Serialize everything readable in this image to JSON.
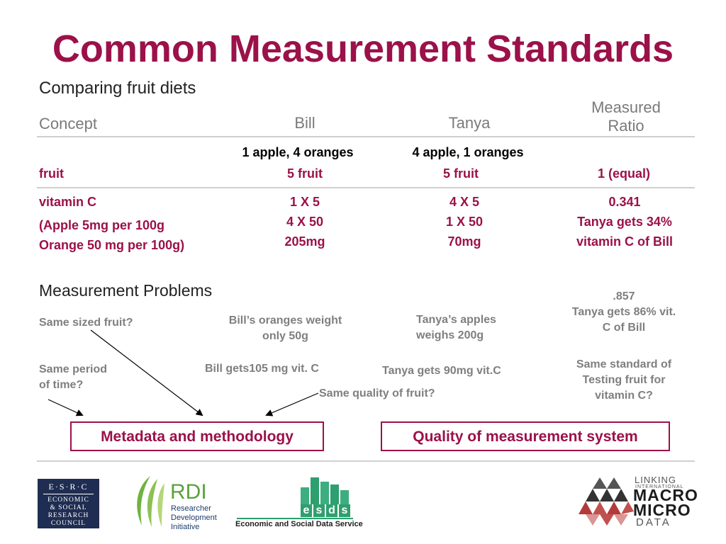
{
  "title": "Common Measurement Standards",
  "subtitle": "Comparing fruit diets",
  "table": {
    "headers": {
      "concept": "Concept",
      "bill": "Bill",
      "tanya": "Tanya",
      "ratio_line1": "Measured",
      "ratio_line2": "Ratio"
    },
    "fruit_row": {
      "bill_desc": "1 apple, 4 oranges",
      "tanya_desc": "4 apple, 1 oranges",
      "concept": "fruit",
      "bill": "5 fruit",
      "tanya": "5 fruit",
      "ratio": "1 (equal)"
    },
    "vitamin_row": {
      "concept": "vitamin C",
      "note_line1": "(Apple 5mg per 100g",
      "note_line2": "Orange 50 mg per 100g)",
      "bill": [
        "1 X 5",
        "4 X 50",
        "205mg"
      ],
      "tanya": [
        "4 X 5",
        "1 X 50",
        "70mg"
      ],
      "ratio": [
        "0.341",
        "Tanya gets 34%",
        "vitamin C of Bill"
      ]
    }
  },
  "problems": {
    "heading": "Measurement Problems",
    "same_sized": "Same sized fruit?",
    "bill_oranges_l1": "Bill’s oranges weight",
    "bill_oranges_l2": "only 50g",
    "tanya_apples_l1": "Tanya’s apples",
    "tanya_apples_l2": "weighs 200g",
    "ratio_857_l1": ".857",
    "ratio_857_l2": "Tanya gets  86% vit.",
    "ratio_857_l3": "C of Bill",
    "same_period_l1": "Same period",
    "same_period_l2": "of time?",
    "bill_gets": "Bill gets105 mg vit. C",
    "tanya_gets": "Tanya gets 90mg vit.C",
    "same_standard_l1": "Same standard of",
    "same_standard_l2": "Testing fruit for",
    "same_standard_l3": "vitamin C?",
    "same_quality": "Same quality of fruit?"
  },
  "boxes": {
    "metadata": "Metadata and methodology",
    "quality": "Quality of measurement system"
  },
  "logos": {
    "esrc_top": "E·S·R·C",
    "esrc_l1": "ECONOMIC",
    "esrc_l2": "& SOCIAL",
    "esrc_l3": "RESEARCH",
    "esrc_l4": "COUNCIL",
    "rdi": "RDI",
    "rdi_l1": "Researcher",
    "rdi_l2": "Development",
    "rdi_l3": "Initiative",
    "esds_letters": [
      "e",
      "s",
      "d",
      "s"
    ],
    "esds_caption": "Economic and Social Data Service",
    "lmm_linking": "LINKING",
    "lmm_international": "INTERNATIONAL",
    "lmm_macro": "MACRO",
    "lmm_micro": "MICRO",
    "lmm_data": "DATA"
  },
  "colors": {
    "accent": "#9b1149",
    "grey_text": "#7f7f7f",
    "rule": "#cfcfcf",
    "esrc_blue": "#1f2d52",
    "esds_green": "#2e9f6e",
    "rdi_green": "#5aa23c"
  }
}
